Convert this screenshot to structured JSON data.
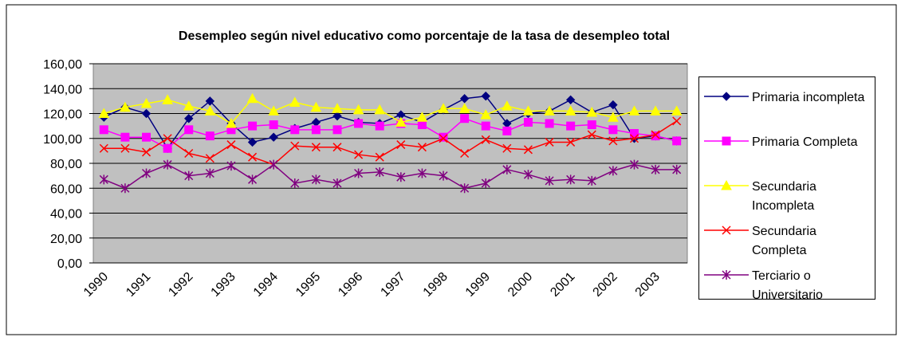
{
  "chart_data": {
    "type": "line",
    "title": "Desempleo según nivel educativo como porcentaje de la tasa de desempleo total",
    "categories": [
      "1990",
      null,
      "1991",
      null,
      "1992",
      null,
      "1993",
      null,
      "1994",
      null,
      "1995",
      null,
      "1996",
      null,
      "1997",
      null,
      "1998",
      null,
      "1999",
      null,
      "2000",
      null,
      "2001",
      null,
      "2002",
      null,
      "2003",
      null
    ],
    "series": [
      {
        "name": "Primaria incompleta",
        "color": "#000080",
        "marker": "diamond",
        "values": [
          117,
          125,
          120,
          92,
          116,
          130,
          112,
          97,
          101,
          108,
          113,
          118,
          113,
          112,
          119,
          113,
          123,
          132,
          134,
          112,
          120,
          122,
          131,
          121,
          127,
          100,
          102,
          98
        ]
      },
      {
        "name": "Primaria Completa",
        "color": "#ff00ff",
        "marker": "square",
        "values": [
          107,
          101,
          101,
          92,
          107,
          102,
          107,
          110,
          111,
          107,
          107,
          107,
          112,
          110,
          112,
          111,
          101,
          116,
          110,
          106,
          113,
          112,
          110,
          111,
          107,
          104,
          102,
          98
        ]
      },
      {
        "name": "Secundaria Incompleta",
        "color": "#ffff00",
        "marker": "triangle",
        "values": [
          120,
          125,
          128,
          131,
          126,
          122,
          112,
          132,
          122,
          129,
          125,
          124,
          123,
          123,
          113,
          117,
          124,
          124,
          119,
          126,
          122,
          122,
          122,
          121,
          117,
          122,
          122,
          122
        ]
      },
      {
        "name": "Secundaria Completa",
        "color": "#ff0000",
        "marker": "x",
        "values": [
          92,
          92,
          89,
          100,
          88,
          84,
          95,
          85,
          79,
          94,
          93,
          93,
          87,
          85,
          95,
          93,
          100,
          88,
          99,
          92,
          91,
          97,
          97,
          103,
          98,
          100,
          103,
          114
        ]
      },
      {
        "name": "Terciario o Universitario",
        "color": "#800080",
        "marker": "star",
        "values": [
          67,
          60,
          72,
          79,
          70,
          72,
          78,
          67,
          79,
          64,
          67,
          64,
          72,
          73,
          69,
          72,
          70,
          60,
          64,
          75,
          71,
          66,
          67,
          66,
          74,
          79,
          75,
          75
        ]
      }
    ],
    "ylim": [
      0,
      160
    ],
    "yticks": [
      {
        "value": 0,
        "label": "0,00"
      },
      {
        "value": 20,
        "label": "20,00"
      },
      {
        "value": 40,
        "label": "40,00"
      },
      {
        "value": 60,
        "label": "60,00"
      },
      {
        "value": 80,
        "label": "80,00"
      },
      {
        "value": 100,
        "label": "100,00"
      },
      {
        "value": 120,
        "label": "120,00"
      },
      {
        "value": 140,
        "label": "140,00"
      },
      {
        "value": 160,
        "label": "160,00"
      }
    ],
    "grid": true,
    "legend": "right"
  }
}
